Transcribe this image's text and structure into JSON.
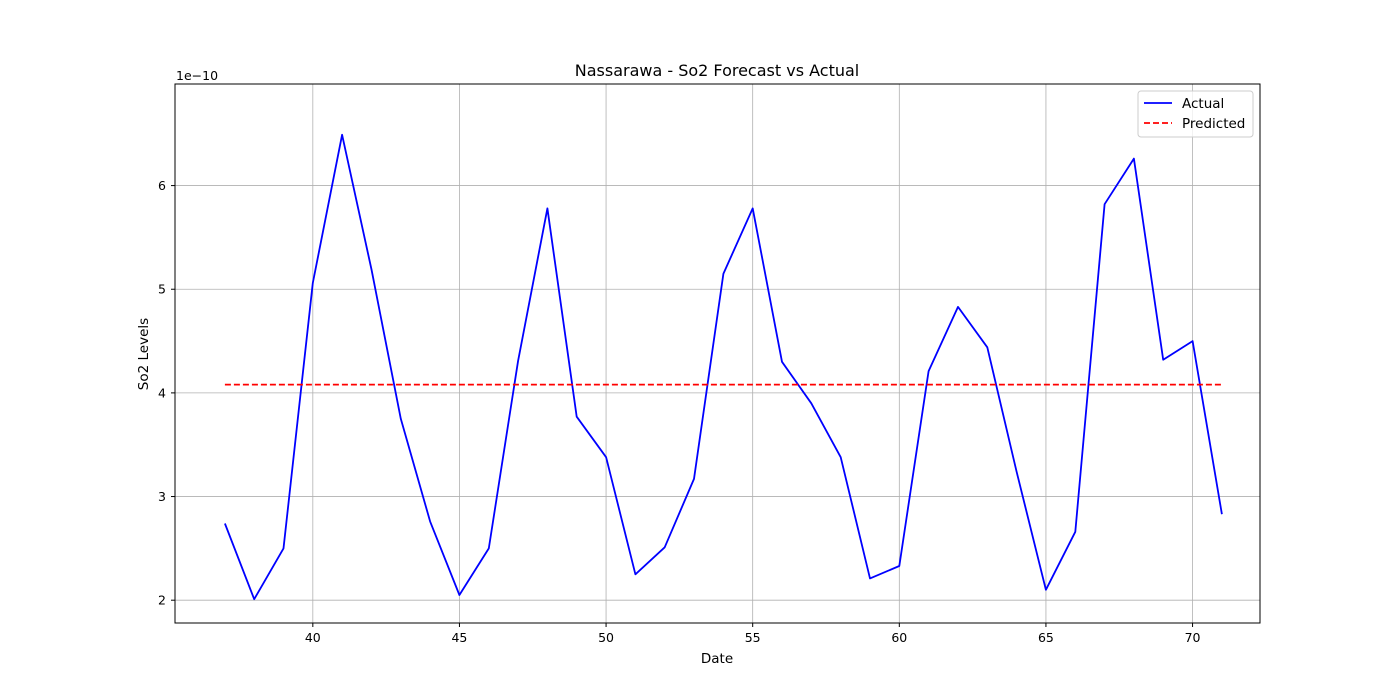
{
  "chart_data": {
    "type": "line",
    "title": "Nassarawa - So2 Forecast vs Actual",
    "xlabel": "Date",
    "ylabel": "So2 Levels",
    "y_offset_label": "1e−10",
    "xlim": [
      35.3,
      72.3
    ],
    "ylim": [
      1.78,
      6.98
    ],
    "x_ticks": [
      40,
      45,
      50,
      55,
      60,
      65,
      70
    ],
    "y_ticks": [
      2,
      3,
      4,
      5,
      6
    ],
    "grid": true,
    "legend_position": "top-right",
    "x": [
      37,
      38,
      39,
      40,
      41,
      42,
      43,
      44,
      45,
      46,
      47,
      48,
      49,
      50,
      51,
      52,
      53,
      54,
      55,
      56,
      57,
      58,
      59,
      60,
      61,
      62,
      63,
      64,
      65,
      66,
      67,
      68,
      69,
      70,
      71
    ],
    "series": [
      {
        "name": "Actual",
        "color": "#0000ff",
        "style": "solid",
        "values": [
          2.74,
          2.01,
          2.5,
          5.06,
          6.49,
          5.19,
          3.75,
          2.76,
          2.05,
          2.5,
          4.31,
          5.78,
          3.77,
          3.38,
          2.25,
          2.51,
          3.17,
          5.15,
          5.78,
          4.3,
          3.9,
          3.38,
          2.21,
          2.33,
          4.21,
          4.83,
          4.44,
          3.24,
          2.1,
          2.66,
          5.82,
          6.26,
          4.32,
          4.5,
          2.83
        ]
      },
      {
        "name": "Predicted",
        "color": "#ff0000",
        "style": "dashed",
        "values": [
          4.08,
          4.08,
          4.08,
          4.08,
          4.08,
          4.08,
          4.08,
          4.08,
          4.08,
          4.08,
          4.08,
          4.08,
          4.08,
          4.08,
          4.08,
          4.08,
          4.08,
          4.08,
          4.08,
          4.08,
          4.08,
          4.08,
          4.08,
          4.08,
          4.08,
          4.08,
          4.08,
          4.08,
          4.08,
          4.08,
          4.08,
          4.08,
          4.08,
          4.08,
          4.08
        ]
      }
    ]
  }
}
